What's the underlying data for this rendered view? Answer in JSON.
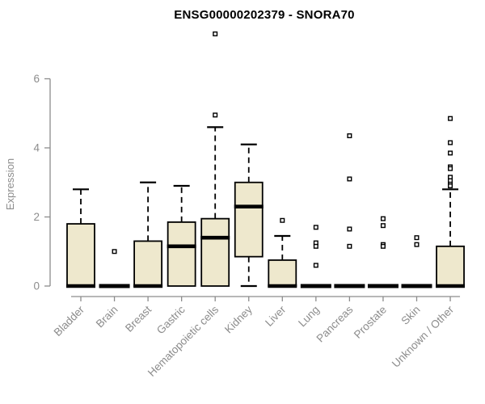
{
  "chart_data": {
    "type": "boxplot",
    "title": "ENSG00000202379 - SNORA70",
    "ylabel": "Expression",
    "xlabel": "",
    "ylim": [
      0,
      6
    ],
    "yticks": [
      0,
      2,
      4,
      6
    ],
    "grid": false,
    "legend": null,
    "marker": "open-square",
    "whisker_style": "dashed",
    "categories": [
      "Bladder",
      "Brain",
      "Breast",
      "Gastric",
      "Hematopoietic cells",
      "Kidney",
      "Liver",
      "Lung",
      "Pancreas",
      "Prostate",
      "Skin",
      "Unknown / Other"
    ],
    "series": [
      {
        "name": "Bladder",
        "whisker_low": 0,
        "q1": 0,
        "median": 0,
        "q3": 1.8,
        "whisker_high": 2.8,
        "outliers": []
      },
      {
        "name": "Brain",
        "whisker_low": 0,
        "q1": 0,
        "median": 0,
        "q3": 0,
        "whisker_high": 0,
        "outliers": [
          1.0
        ]
      },
      {
        "name": "Breast",
        "whisker_low": 0,
        "q1": 0,
        "median": 0,
        "q3": 1.3,
        "whisker_high": 3.0,
        "outliers": []
      },
      {
        "name": "Gastric",
        "whisker_low": 0,
        "q1": 0,
        "median": 1.15,
        "q3": 1.85,
        "whisker_high": 2.9,
        "outliers": []
      },
      {
        "name": "Hematopoietic cells",
        "whisker_low": 0,
        "q1": 0,
        "median": 1.4,
        "q3": 1.95,
        "whisker_high": 4.6,
        "outliers": [
          4.95,
          7.3
        ]
      },
      {
        "name": "Kidney",
        "whisker_low": 0,
        "q1": 0.85,
        "median": 2.3,
        "q3": 3.0,
        "whisker_high": 4.1,
        "outliers": []
      },
      {
        "name": "Liver",
        "whisker_low": 0,
        "q1": 0,
        "median": 0,
        "q3": 0.75,
        "whisker_high": 1.45,
        "outliers": [
          1.9
        ]
      },
      {
        "name": "Lung",
        "whisker_low": 0,
        "q1": 0,
        "median": 0,
        "q3": 0,
        "whisker_high": 0,
        "outliers": [
          1.7,
          1.25,
          1.15,
          0.6
        ]
      },
      {
        "name": "Pancreas",
        "whisker_low": 0,
        "q1": 0,
        "median": 0,
        "q3": 0,
        "whisker_high": 0,
        "outliers": [
          4.35,
          3.1,
          1.65,
          1.15
        ]
      },
      {
        "name": "Prostate",
        "whisker_low": 0,
        "q1": 0,
        "median": 0,
        "q3": 0,
        "whisker_high": 0,
        "outliers": [
          1.95,
          1.75,
          1.2,
          1.15
        ]
      },
      {
        "name": "Skin",
        "whisker_low": 0,
        "q1": 0,
        "median": 0,
        "q3": 0,
        "whisker_high": 0,
        "outliers": [
          1.4,
          1.2
        ]
      },
      {
        "name": "Unknown / Other",
        "whisker_low": 0,
        "q1": 0,
        "median": 0,
        "q3": 1.15,
        "whisker_high": 2.8,
        "outliers": [
          4.85,
          4.15,
          3.85,
          3.45,
          3.4,
          3.15,
          3.05,
          2.95,
          2.9
        ]
      }
    ],
    "colors": {
      "box_fill": "#EEE8CD",
      "box_stroke": "#000000",
      "median": "#000000",
      "axis": "#8c8c8c",
      "tick_label": "#8c8c8c",
      "title": "#000000",
      "background": "#ffffff"
    }
  }
}
